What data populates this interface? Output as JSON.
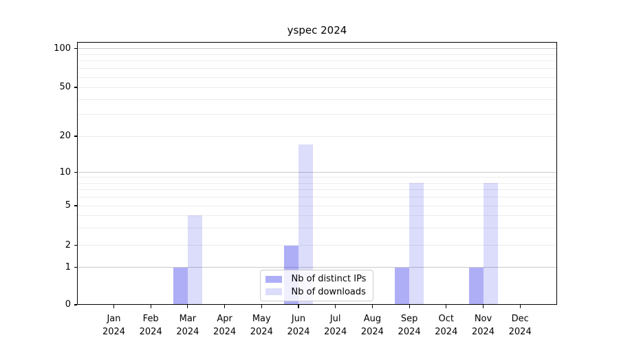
{
  "chart_data": {
    "type": "bar",
    "title": "yspec 2024",
    "categories": [
      "Jan 2024",
      "Feb 2024",
      "Mar 2024",
      "Apr 2024",
      "May 2024",
      "Jun 2024",
      "Jul 2024",
      "Aug 2024",
      "Sep 2024",
      "Oct 2024",
      "Nov 2024",
      "Dec 2024"
    ],
    "series": [
      {
        "name": "Nb of distinct IPs",
        "color": "rgba(10,10,230,0.33)",
        "color_on_white": "#acacf8",
        "values": [
          0,
          0,
          1,
          0,
          0,
          2,
          0,
          0,
          1,
          0,
          1,
          0
        ]
      },
      {
        "name": "Nb of downloads",
        "color": "rgba(10,10,230,0.14)",
        "color_on_white": "#dbdaf9",
        "values": [
          0,
          0,
          4,
          0,
          0,
          17,
          0,
          0,
          8,
          0,
          8,
          0
        ]
      }
    ],
    "xlabel": "",
    "ylabel": "",
    "yscale": "symlog",
    "ylim": [
      0,
      113
    ],
    "yticks": [
      0,
      1,
      2,
      5,
      10,
      20,
      50,
      100
    ],
    "major_gridlines": [
      1,
      10,
      100
    ],
    "minor_gridlines": [
      2,
      3,
      4,
      6,
      7,
      8,
      9,
      5,
      20,
      30,
      40,
      50,
      60,
      70,
      80,
      90
    ],
    "grid": true,
    "legend_position": "lower center"
  },
  "legend": {
    "items": [
      {
        "label": "Nb of distinct IPs"
      },
      {
        "label": "Nb of downloads"
      }
    ]
  }
}
